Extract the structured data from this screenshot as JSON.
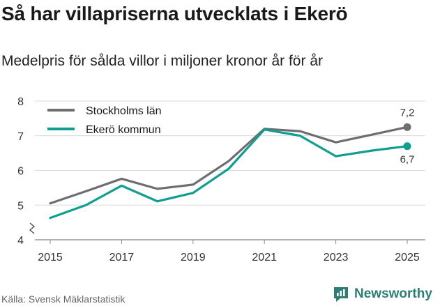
{
  "chart_data": {
    "type": "line",
    "title": "Så har villapriserna utvecklats i Ekerö",
    "subtitle": "Medelpris för sålda villor i miljoner kronor år för år",
    "x": [
      2015,
      2016,
      2017,
      2018,
      2019,
      2020,
      2021,
      2022,
      2023,
      2024,
      2025
    ],
    "xticks": [
      "2015",
      "2017",
      "2019",
      "2021",
      "2023",
      "2025"
    ],
    "yticks": [
      "4",
      "5",
      "6",
      "7",
      "8"
    ],
    "ylim": [
      4,
      8
    ],
    "grid": true,
    "legend_position": "top-left",
    "series": [
      {
        "name": "Stockholms län",
        "color": "#6e6d72",
        "values": [
          5.05,
          5.4,
          5.76,
          5.47,
          5.59,
          6.27,
          7.2,
          7.13,
          6.81,
          7.03,
          7.25
        ],
        "end_label": "7,2"
      },
      {
        "name": "Ekerö kommun",
        "color": "#119e90",
        "values": [
          4.63,
          5.0,
          5.56,
          5.11,
          5.35,
          6.05,
          7.18,
          7.0,
          6.41,
          6.57,
          6.7
        ],
        "end_label": "6,7"
      }
    ]
  },
  "source": "Källa: Svensk Mäklarstatistik",
  "brand": {
    "name": "Newsworthy",
    "color": "#2e7d74"
  }
}
